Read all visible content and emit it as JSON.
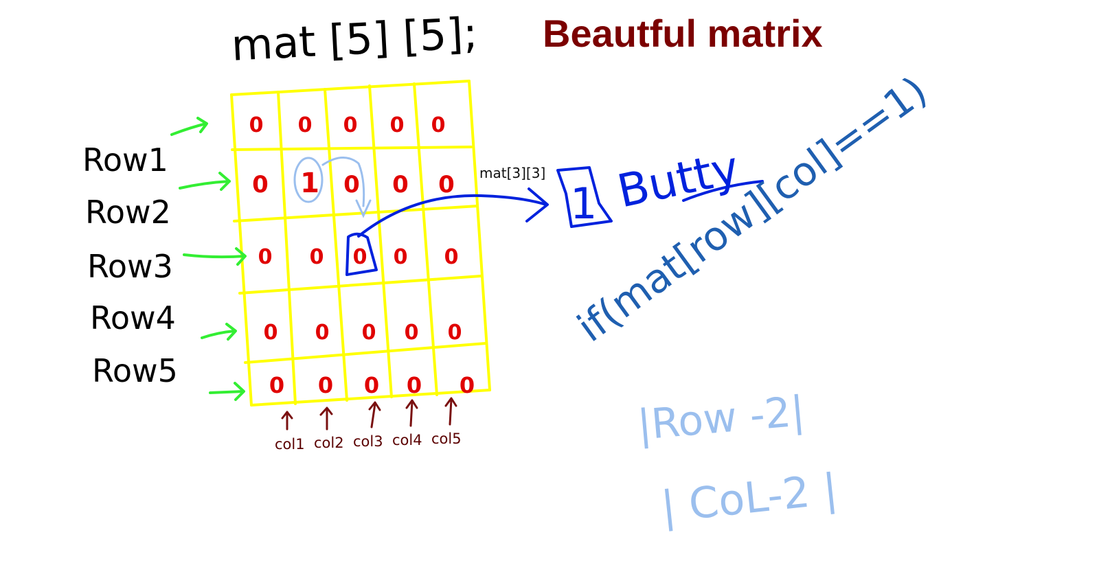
{
  "title": "Beautful matrix",
  "declaration": "mat [5] [5];",
  "row_labels": [
    "Row1",
    "Row2",
    "Row3",
    "Row4",
    "Row5"
  ],
  "col_labels": [
    "col1",
    "col2",
    "col3",
    "col4",
    "col5"
  ],
  "matrix": [
    [
      "0",
      "0",
      "0",
      "0",
      "0"
    ],
    [
      "0",
      "1",
      "0",
      "0",
      "0"
    ],
    [
      "0",
      "0",
      "0",
      "0",
      "0"
    ],
    [
      "0",
      "0",
      "0",
      "0",
      "0"
    ],
    [
      "0",
      "0",
      "0",
      "0",
      "0"
    ]
  ],
  "center_cell_label": "mat[3][3]",
  "boxed_value": "1",
  "boxed_word": "Butty",
  "condition": "if(mat[row][col]==1)",
  "formula_row": "|Row -2|",
  "formula_col": "| CoL-2 |",
  "colors": {
    "title": "#7b0000",
    "grid": "#ffff00",
    "cell_value": "#e00000",
    "row_arrow": "#33ee33",
    "col_arrow": "#7a1010",
    "highlight": "#0022dd",
    "condition": "#1f5fb0",
    "formula": "#9bbfee"
  }
}
